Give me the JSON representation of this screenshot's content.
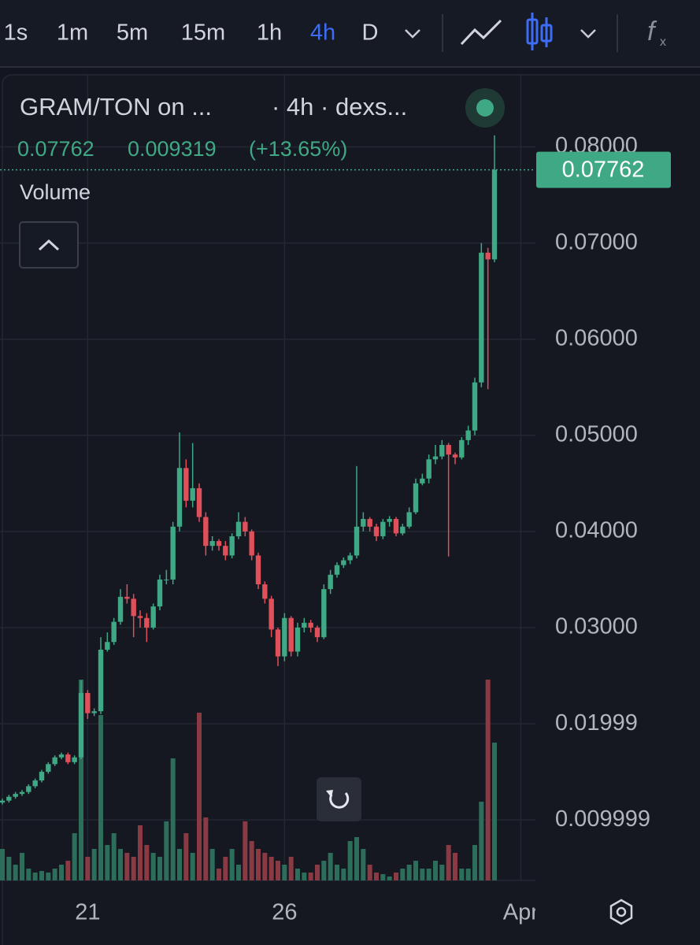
{
  "toolbar": {
    "intervals": [
      "1s",
      "1m",
      "5m",
      "15m",
      "1h",
      "4h",
      "D"
    ],
    "active": "4h"
  },
  "legend": {
    "symbol": "GRAM/TON on ...",
    "meta": "· 4h · dexs...",
    "last": 0.07762,
    "change": 0.009319,
    "change_pct": "(+13.65%)",
    "indicator": "Volume"
  },
  "chart_data": {
    "type": "candlestick",
    "up_color": "#3fa884",
    "down_color": "#e0505a",
    "volume_up_color": "#2d6e5b",
    "volume_down_color": "#8a3a42",
    "last_price": 0.07762,
    "xlim": [
      -0.4,
      81.3
    ],
    "xticks": [
      {
        "value": 13,
        "label": "21"
      },
      {
        "value": 43,
        "label": "26"
      },
      {
        "value": 79,
        "label": "Apr"
      }
    ],
    "ylim": [
      0.0037,
      0.0875
    ],
    "yticks": [
      {
        "value": 0.009999,
        "label": "0.009999"
      },
      0.01999,
      {
        "value": 0.03,
        "label": "0.03000"
      },
      {
        "value": 0.04,
        "label": "0.04000"
      },
      {
        "value": 0.05,
        "label": "0.05000"
      },
      {
        "value": 0.06,
        "label": "0.06000"
      },
      {
        "value": 0.07,
        "label": "0.07000"
      },
      {
        "value": 0.08,
        "label": "0.08000"
      }
    ],
    "grid": true,
    "open": [
      0.0118,
      0.012,
      0.0124,
      0.0127,
      0.0129,
      0.0135,
      0.0141,
      0.015,
      0.0158,
      0.0165,
      0.0168,
      0.016,
      0.0165,
      0.0232,
      0.0211,
      0.0213,
      0.0277,
      0.0285,
      0.0306,
      0.0332,
      0.033,
      0.0312,
      0.031,
      0.03,
      0.0322,
      0.035,
      0.035,
      0.0405,
      0.0466,
      0.0432,
      0.0445,
      0.0415,
      0.0385,
      0.039,
      0.0385,
      0.0375,
      0.0395,
      0.041,
      0.04,
      0.0375,
      0.0345,
      0.033,
      0.0298,
      0.027,
      0.031,
      0.0275,
      0.03,
      0.0305,
      0.03,
      0.029,
      0.034,
      0.0355,
      0.0365,
      0.037,
      0.0375,
      0.0405,
      0.0413,
      0.0405,
      0.0395,
      0.041,
      0.0413,
      0.0398,
      0.0405,
      0.042,
      0.045,
      0.0455,
      0.0475,
      0.0478,
      0.049,
      0.048,
      0.0477,
      0.0495,
      0.0505,
      0.0555,
      0.069,
      0.0683
    ],
    "high": [
      0.0122,
      0.0126,
      0.0129,
      0.0131,
      0.0137,
      0.0143,
      0.0152,
      0.016,
      0.0167,
      0.017,
      0.017,
      0.0167,
      0.0245,
      0.0235,
      0.0216,
      0.029,
      0.0295,
      0.031,
      0.034,
      0.0345,
      0.0335,
      0.0318,
      0.0315,
      0.0325,
      0.0355,
      0.036,
      0.041,
      0.0503,
      0.0475,
      0.0492,
      0.045,
      0.042,
      0.0395,
      0.0392,
      0.039,
      0.0398,
      0.042,
      0.0415,
      0.0402,
      0.0378,
      0.0348,
      0.0333,
      0.03,
      0.0315,
      0.0312,
      0.0305,
      0.031,
      0.0308,
      0.0302,
      0.0345,
      0.036,
      0.0368,
      0.0373,
      0.0378,
      0.0468,
      0.042,
      0.0415,
      0.0408,
      0.0413,
      0.0416,
      0.0415,
      0.0408,
      0.0425,
      0.0455,
      0.046,
      0.048,
      0.049,
      0.0495,
      0.0492,
      0.0482,
      0.0498,
      0.051,
      0.056,
      0.07,
      0.0695,
      0.0812
    ],
    "low": [
      0.0116,
      0.0118,
      0.0122,
      0.0125,
      0.0127,
      0.0133,
      0.0139,
      0.0148,
      0.0156,
      0.0163,
      0.0158,
      0.0158,
      0.0163,
      0.0205,
      0.0208,
      0.021,
      0.0275,
      0.0282,
      0.0303,
      0.0325,
      0.029,
      0.03,
      0.0285,
      0.0298,
      0.0318,
      0.0345,
      0.0345,
      0.04,
      0.0425,
      0.0425,
      0.041,
      0.0375,
      0.038,
      0.038,
      0.037,
      0.0372,
      0.0392,
      0.0395,
      0.037,
      0.034,
      0.0325,
      0.029,
      0.026,
      0.0265,
      0.027,
      0.027,
      0.0295,
      0.0295,
      0.0285,
      0.0288,
      0.0335,
      0.0352,
      0.0362,
      0.0366,
      0.0372,
      0.04,
      0.04,
      0.039,
      0.0392,
      0.0405,
      0.0395,
      0.0396,
      0.0403,
      0.0418,
      0.0448,
      0.045,
      0.047,
      0.0475,
      0.0374,
      0.047,
      0.0475,
      0.049,
      0.05,
      0.055,
      0.0548,
      0.068
    ],
    "close": [
      0.012,
      0.0124,
      0.0127,
      0.0129,
      0.0135,
      0.0141,
      0.015,
      0.0158,
      0.0165,
      0.0168,
      0.016,
      0.0165,
      0.0232,
      0.0211,
      0.0213,
      0.0277,
      0.0285,
      0.0306,
      0.0332,
      0.033,
      0.0312,
      0.031,
      0.03,
      0.0322,
      0.035,
      0.035,
      0.0405,
      0.0466,
      0.0432,
      0.0445,
      0.0415,
      0.0385,
      0.039,
      0.0385,
      0.0375,
      0.0395,
      0.041,
      0.04,
      0.0375,
      0.0345,
      0.033,
      0.0298,
      0.027,
      0.031,
      0.0275,
      0.03,
      0.0305,
      0.03,
      0.029,
      0.034,
      0.0355,
      0.0365,
      0.037,
      0.0375,
      0.0405,
      0.0413,
      0.0405,
      0.0395,
      0.041,
      0.0413,
      0.0398,
      0.0405,
      0.042,
      0.045,
      0.0455,
      0.0475,
      0.0478,
      0.049,
      0.048,
      0.0477,
      0.0495,
      0.0505,
      0.0555,
      0.069,
      0.0683,
      0.07762
    ],
    "volume": [
      40,
      30,
      20,
      35,
      15,
      10,
      12,
      10,
      15,
      20,
      25,
      60,
      255,
      30,
      40,
      210,
      45,
      60,
      40,
      35,
      30,
      70,
      45,
      35,
      30,
      75,
      155,
      40,
      60,
      35,
      213,
      80,
      40,
      15,
      30,
      40,
      20,
      75,
      50,
      40,
      35,
      30,
      25,
      20,
      30,
      15,
      10,
      10,
      20,
      25,
      35,
      20,
      15,
      50,
      55,
      40,
      20,
      10,
      8,
      5,
      10,
      15,
      20,
      25,
      15,
      15,
      25,
      20,
      45,
      35,
      15,
      15,
      45,
      100,
      255,
      175
    ]
  }
}
